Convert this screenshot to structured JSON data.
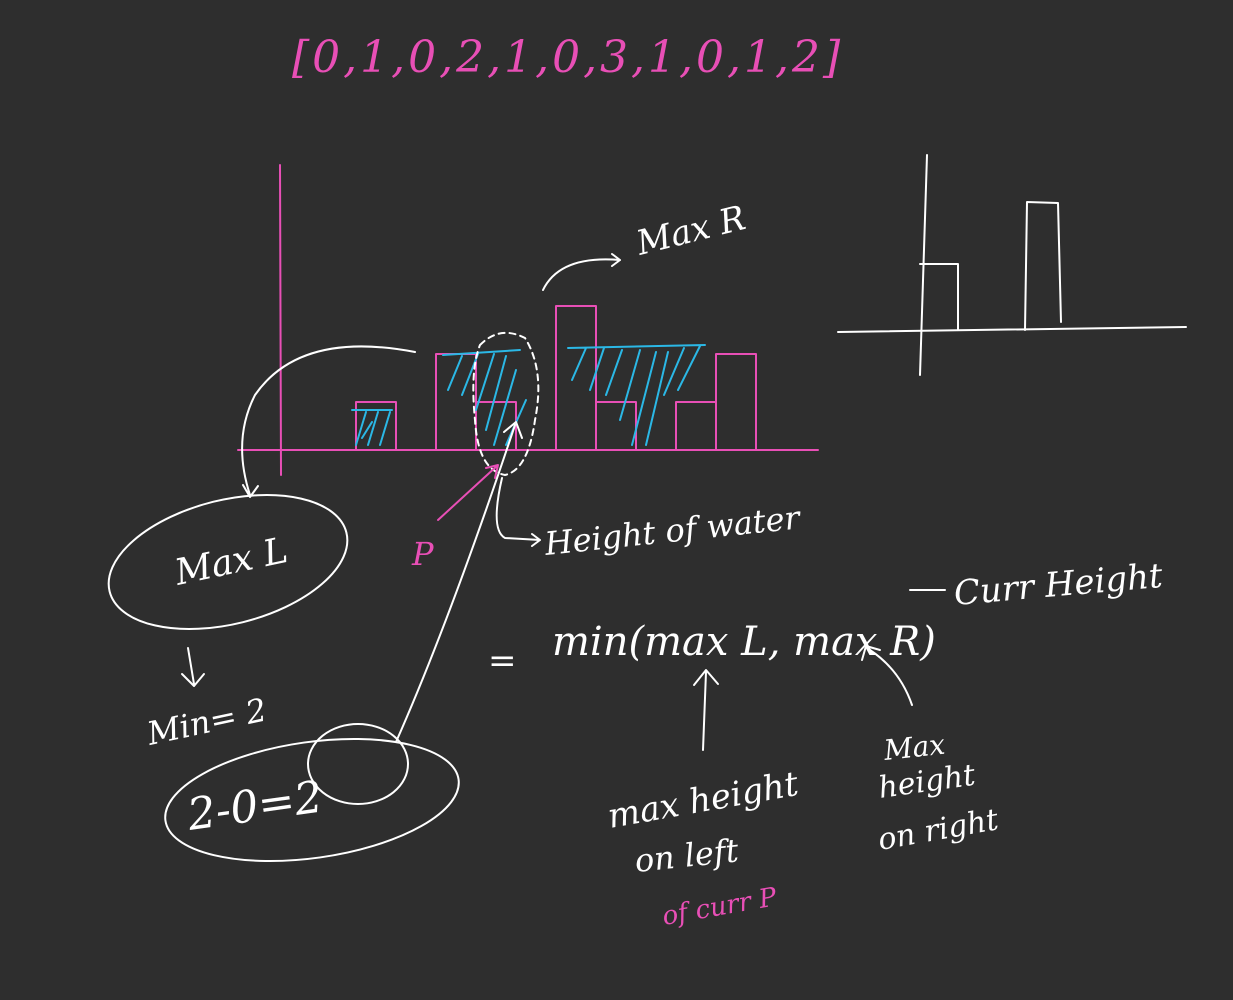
{
  "array_label": "[0,1,0,2,1,0,3,1,0,1,2]",
  "elevation_heights": [
    0,
    1,
    0,
    2,
    1,
    0,
    3,
    1,
    0,
    1,
    2
  ],
  "labels": {
    "max_r": "Max R",
    "max_l": "Max L",
    "p": "P",
    "height_of_water": "Height of water",
    "equals": "=",
    "formula": "min(max L, max R)",
    "curr_height": "Curr Height",
    "min_eq": "Min= 2",
    "calc": "2-0=2",
    "max_height_left_1": "max height",
    "max_height_left_2": "on left",
    "of_curr_p": "of curr P",
    "max_height_right_1": "Max",
    "max_height_right_2": "height",
    "max_height_right_3": "on right"
  },
  "colors": {
    "background": "#2e2e2e",
    "ink": "#ffffff",
    "accent": "#e84fb6",
    "water": "#2bb8e6"
  }
}
